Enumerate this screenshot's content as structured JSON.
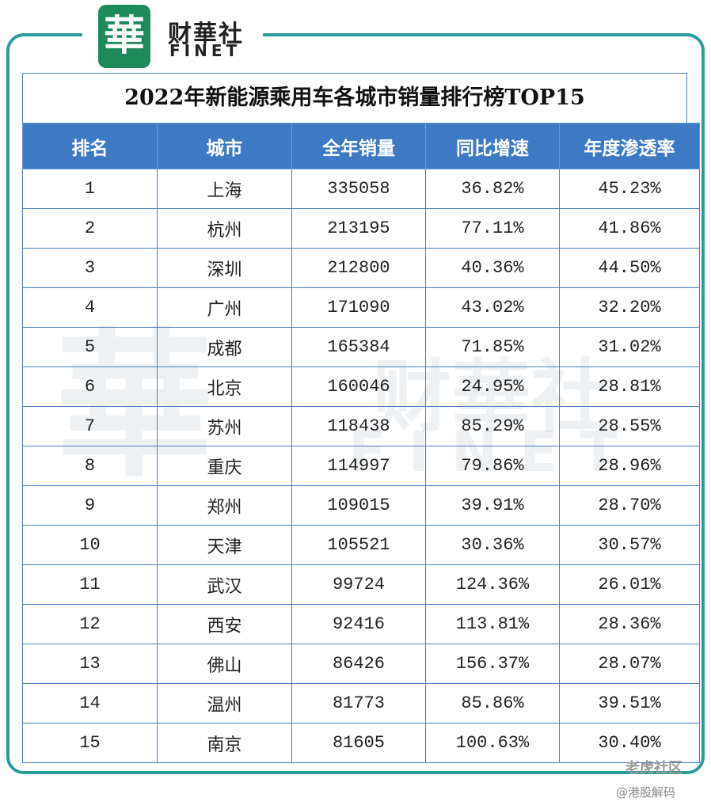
{
  "header": {
    "logo_char": "華",
    "brand_cn": "财華社",
    "brand_en": "FINET"
  },
  "table": {
    "title": "2022年新能源乘用车各城市销量排行榜TOP15",
    "columns": [
      "排名",
      "城市",
      "全年销量",
      "同比增速",
      "年度渗透率"
    ],
    "rows": [
      [
        "1",
        "上海",
        "335058",
        "36.82%",
        "45.23%"
      ],
      [
        "2",
        "杭州",
        "213195",
        "77.11%",
        "41.86%"
      ],
      [
        "3",
        "深圳",
        "212800",
        "40.36%",
        "44.50%"
      ],
      [
        "4",
        "广州",
        "171090",
        "43.02%",
        "32.20%"
      ],
      [
        "5",
        "成都",
        "165384",
        "71.85%",
        "31.02%"
      ],
      [
        "6",
        "北京",
        "160046",
        "24.95%",
        "28.81%"
      ],
      [
        "7",
        "苏州",
        "118438",
        "85.29%",
        "28.55%"
      ],
      [
        "8",
        "重庆",
        "114997",
        "79.86%",
        "28.96%"
      ],
      [
        "9",
        "郑州",
        "109015",
        "39.91%",
        "28.70%"
      ],
      [
        "10",
        "天津",
        "105521",
        "30.36%",
        "30.57%"
      ],
      [
        "11",
        "武汉",
        "99724",
        "124.36%",
        "26.01%"
      ],
      [
        "12",
        "西安",
        "92416",
        "113.81%",
        "28.36%"
      ],
      [
        "13",
        "佛山",
        "86426",
        "156.37%",
        "28.07%"
      ],
      [
        "14",
        "温州",
        "81773",
        "85.86%",
        "39.51%"
      ],
      [
        "15",
        "南京",
        "81605",
        "100.63%",
        "30.40%"
      ]
    ]
  },
  "watermark": {
    "site": "老虎社区",
    "author": "@港股解码"
  }
}
